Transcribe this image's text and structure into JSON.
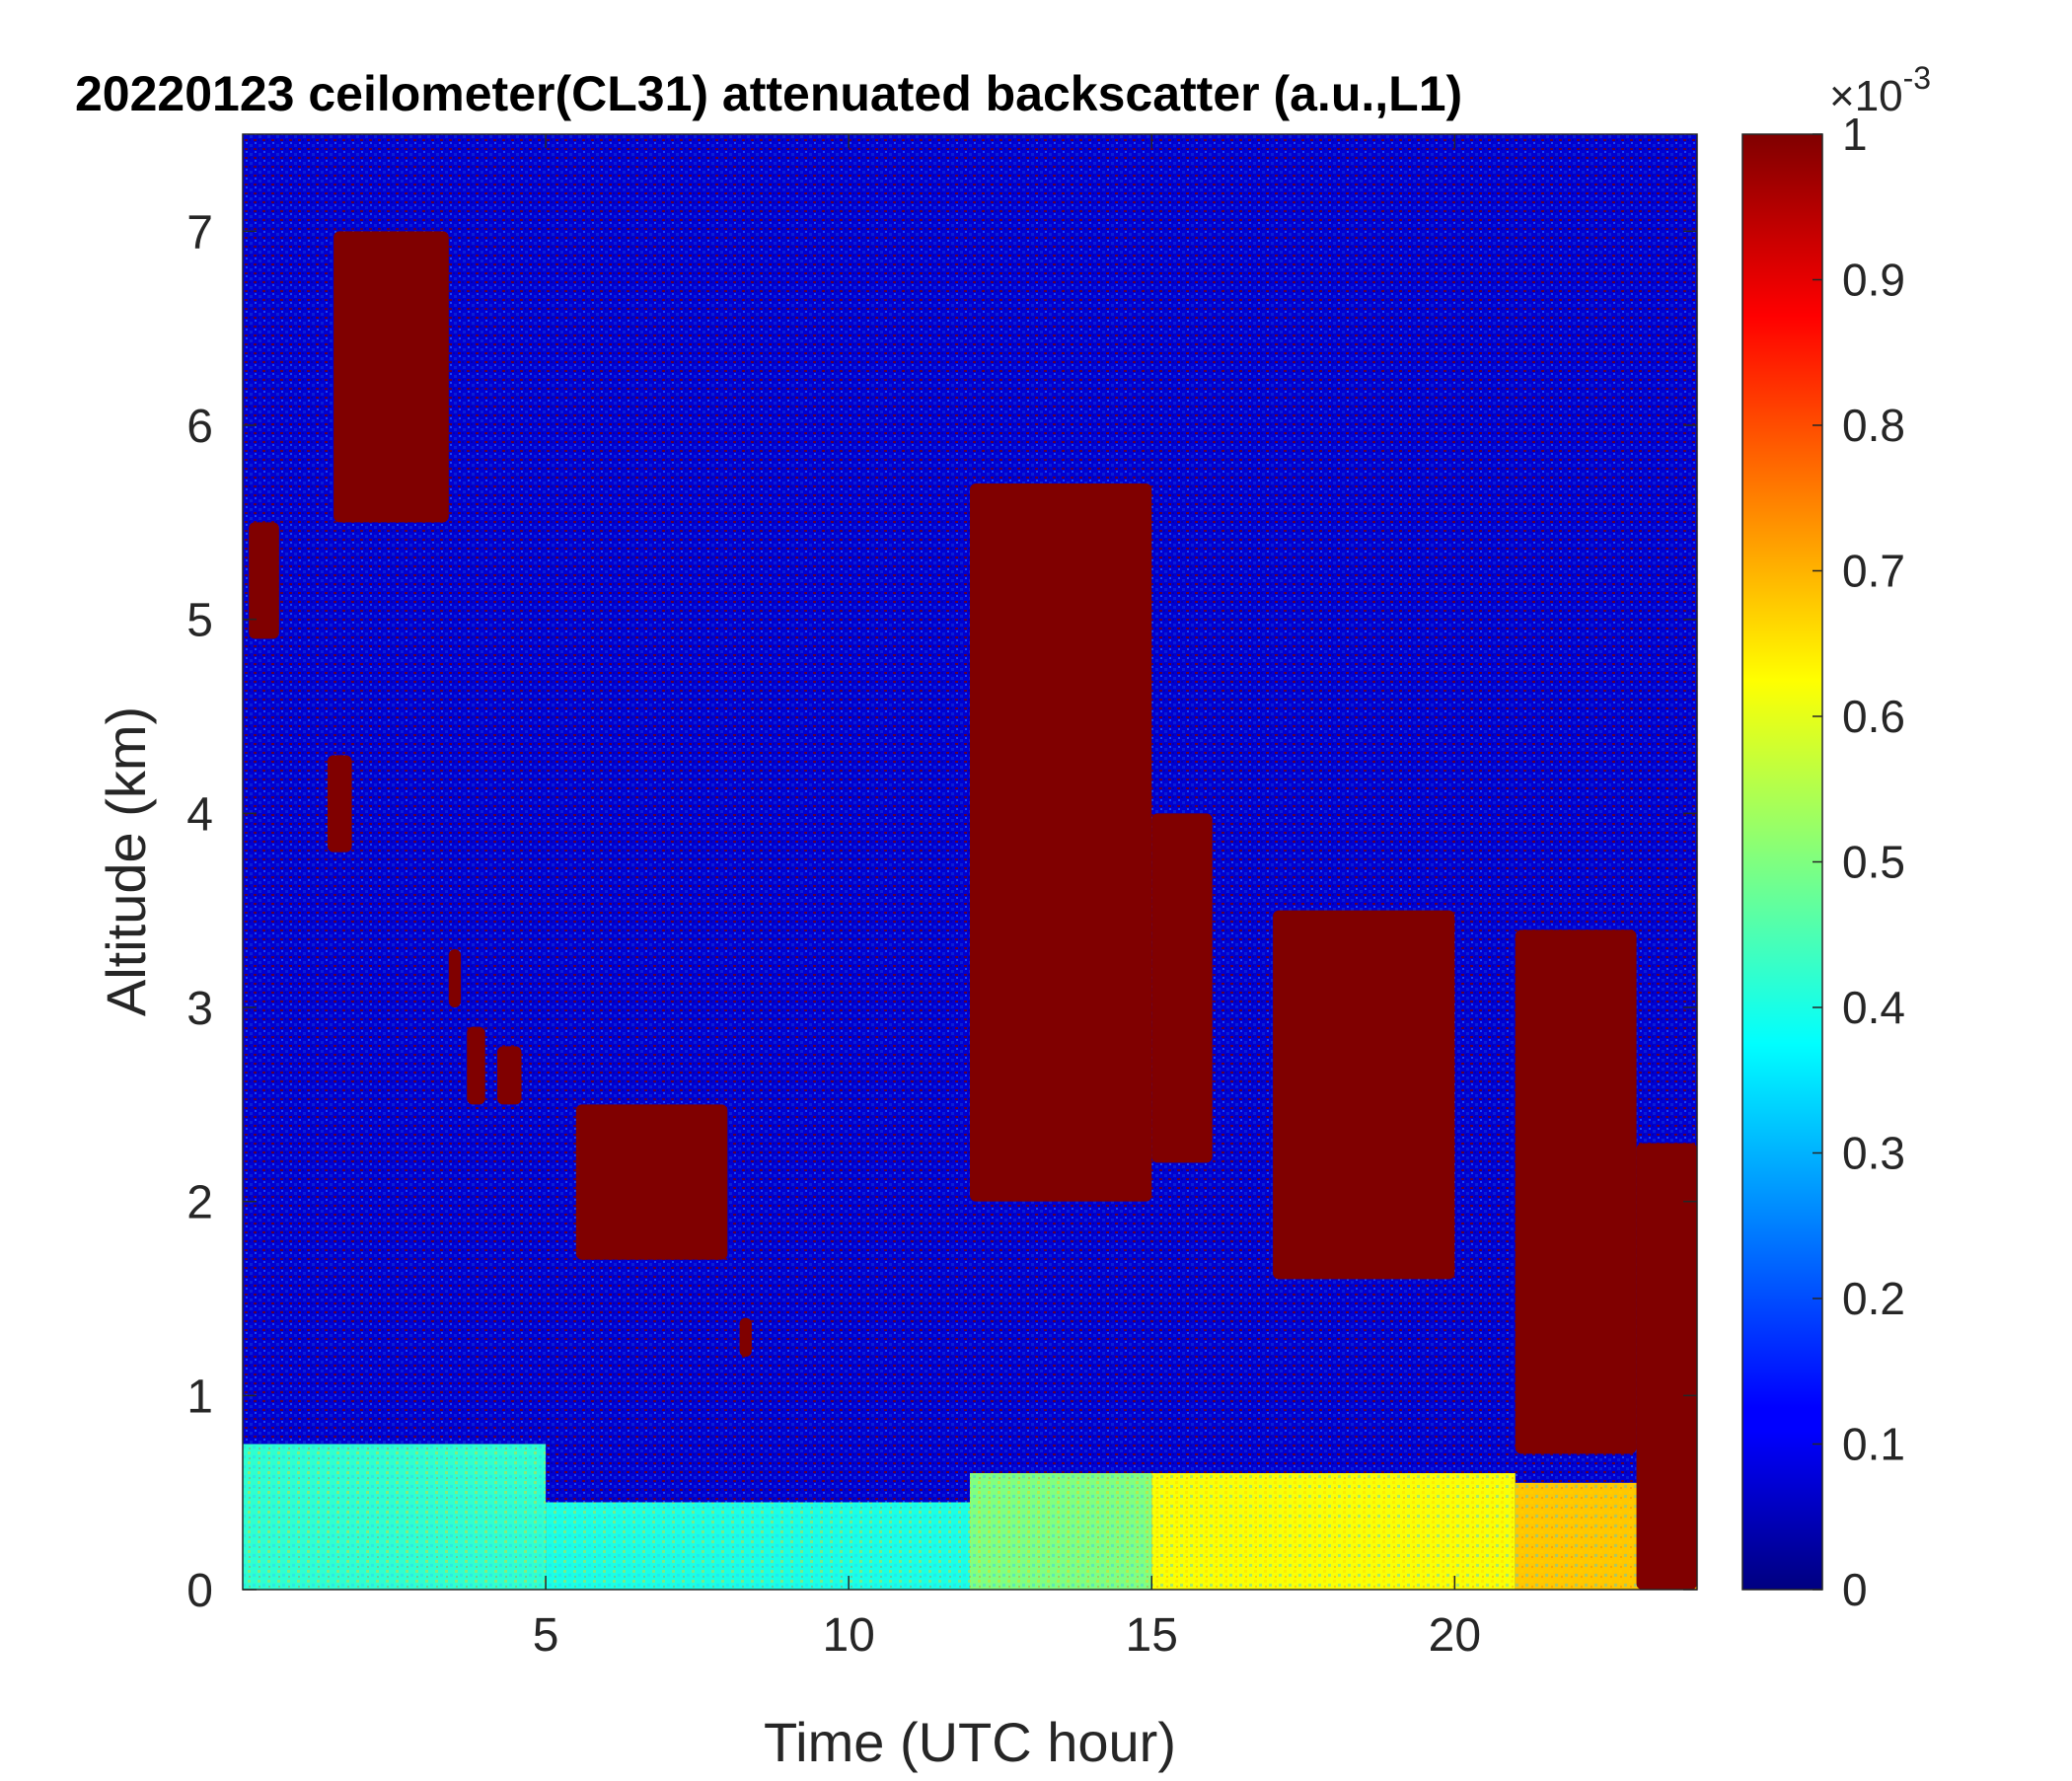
{
  "chart_data": {
    "type": "heatmap",
    "title": "20220123 ceilometer(CL31) attenuated backscatter (a.u.,L1)",
    "xlabel": "Time (UTC hour)",
    "ylabel": "Altitude (km)",
    "xlim": [
      0,
      24
    ],
    "ylim": [
      0,
      7.5
    ],
    "xticks": [
      5,
      10,
      15,
      20
    ],
    "yticks": [
      0,
      1,
      2,
      3,
      4,
      5,
      6,
      7
    ],
    "colorbar": {
      "colormap": "jet",
      "clim": [
        0,
        1
      ],
      "multiplier": "×10",
      "exponent": "-3",
      "ticks": [
        0,
        0.1,
        0.2,
        0.3,
        0.4,
        0.5,
        0.6,
        0.7,
        0.8,
        0.9,
        1
      ],
      "tick_labels": [
        "0",
        "0.1",
        "0.2",
        "0.3",
        "0.4",
        "0.5",
        "0.6",
        "0.7",
        "0.8",
        "0.9",
        "1"
      ]
    },
    "background_value": 0.08,
    "surface_layer": [
      {
        "x_range": [
          0,
          5
        ],
        "top_km": 0.75,
        "value": 0.42
      },
      {
        "x_range": [
          5,
          12
        ],
        "top_km": 0.45,
        "value": 0.4
      },
      {
        "x_range": [
          12,
          15
        ],
        "top_km": 0.6,
        "value": 0.5
      },
      {
        "x_range": [
          15,
          21
        ],
        "top_km": 0.6,
        "value": 0.62
      },
      {
        "x_range": [
          21,
          24
        ],
        "top_km": 0.55,
        "value": 0.68
      }
    ],
    "cloud_features": [
      {
        "x_range": [
          0.1,
          0.6
        ],
        "y_range_km": [
          4.9,
          5.5
        ],
        "value": 1.0
      },
      {
        "x_range": [
          1.5,
          3.4
        ],
        "y_range_km": [
          5.5,
          7.0
        ],
        "value": 1.0
      },
      {
        "x_range": [
          1.4,
          1.8
        ],
        "y_range_km": [
          3.8,
          4.3
        ],
        "value": 1.0
      },
      {
        "x_range": [
          3.4,
          3.6
        ],
        "y_range_km": [
          3.0,
          3.3
        ],
        "value": 1.0
      },
      {
        "x_range": [
          3.7,
          4.0
        ],
        "y_range_km": [
          2.5,
          2.9
        ],
        "value": 1.0
      },
      {
        "x_range": [
          4.2,
          4.6
        ],
        "y_range_km": [
          2.5,
          2.8
        ],
        "value": 1.0
      },
      {
        "x_range": [
          5.5,
          8.0
        ],
        "y_range_km": [
          1.7,
          2.5
        ],
        "value": 1.0
      },
      {
        "x_range": [
          8.2,
          8.4
        ],
        "y_range_km": [
          1.2,
          1.4
        ],
        "value": 1.0
      },
      {
        "x_range": [
          12.0,
          15.0
        ],
        "y_range_km": [
          2.0,
          5.7
        ],
        "value": 1.0
      },
      {
        "x_range": [
          15.0,
          16.0
        ],
        "y_range_km": [
          2.2,
          4.0
        ],
        "value": 1.0
      },
      {
        "x_range": [
          17.0,
          20.0
        ],
        "y_range_km": [
          1.6,
          3.5
        ],
        "value": 1.0
      },
      {
        "x_range": [
          21.0,
          23.0
        ],
        "y_range_km": [
          0.7,
          3.4
        ],
        "value": 1.0
      },
      {
        "x_range": [
          23.0,
          24.0
        ],
        "y_range_km": [
          0.0,
          2.3
        ],
        "value": 1.0
      }
    ]
  }
}
